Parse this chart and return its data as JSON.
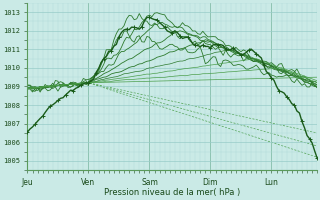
{
  "title": "Pression niveau de la mer( hPa )",
  "bg_color": "#caeae6",
  "grid_color_minor": "#b0dbd8",
  "grid_color_major": "#98ccc8",
  "line_color_dark": "#1a5c1a",
  "line_color_medium": "#2d7a2d",
  "line_color_light": "#4a9e4a",
  "ylim": [
    1004.5,
    1013.5
  ],
  "yticks": [
    1005,
    1006,
    1007,
    1008,
    1009,
    1010,
    1011,
    1012,
    1013
  ],
  "day_labels": [
    "Jeu",
    "Ven",
    "Sam",
    "Dim",
    "Lun"
  ],
  "day_positions": [
    0,
    24,
    48,
    72,
    96
  ],
  "xlim": [
    0,
    114
  ],
  "n_points": 115
}
